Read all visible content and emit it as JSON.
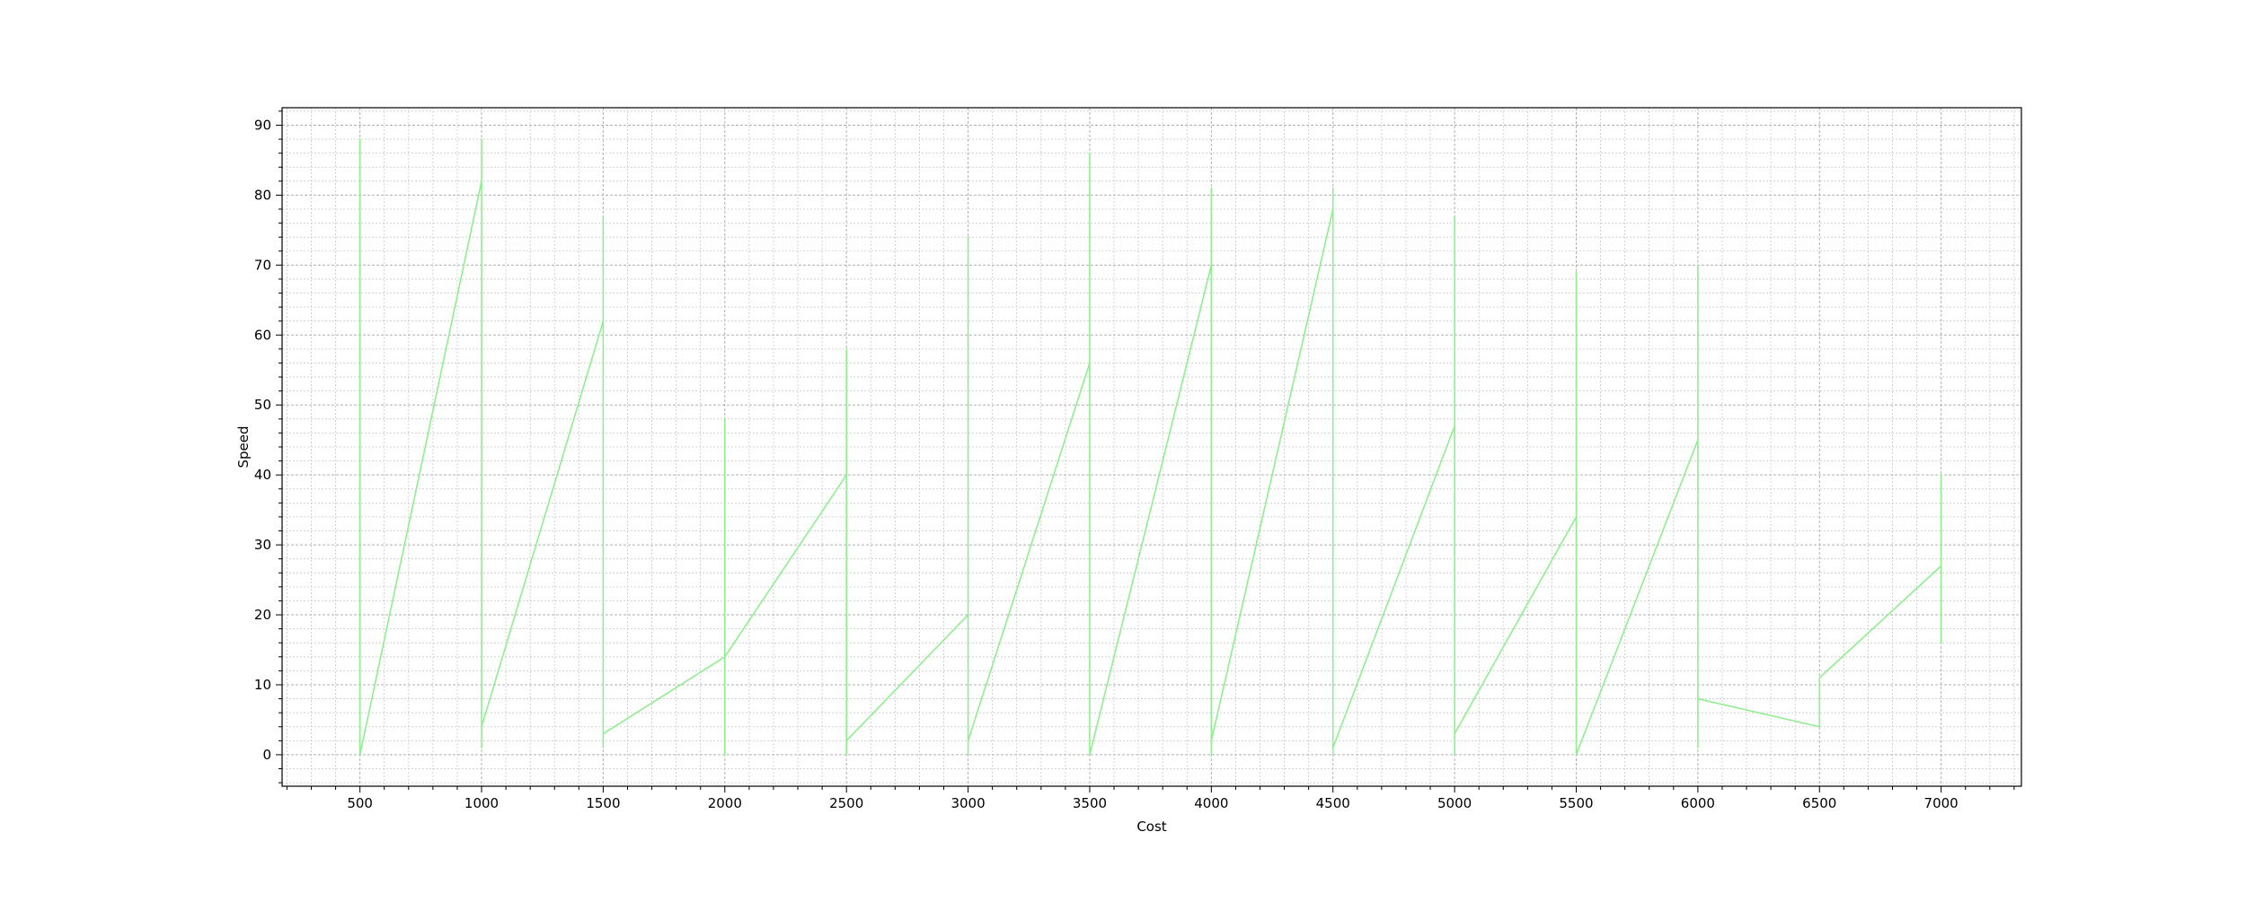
{
  "chart_data": {
    "type": "line",
    "xlabel": "Cost",
    "ylabel": "Speed",
    "xlim": [
      180,
      7330
    ],
    "ylim": [
      -4.5,
      92.5
    ],
    "x_ticks": [
      500,
      1000,
      1500,
      2000,
      2500,
      3000,
      3500,
      4000,
      4500,
      5000,
      5500,
      6000,
      6500,
      7000
    ],
    "y_ticks": [
      0,
      10,
      20,
      30,
      40,
      50,
      60,
      70,
      80,
      90
    ],
    "x_minor_step": 100,
    "y_minor_step": 2,
    "grid": true,
    "line_color": "#90ee90",
    "series": [
      {
        "x": [
          500,
          500,
          500,
          500,
          1000,
          1000,
          1000,
          1000,
          1500,
          1500,
          1500,
          1500,
          2000,
          2000,
          2000,
          2000,
          2500,
          2500,
          2500,
          2500,
          3000,
          3000,
          3000,
          3000,
          3500,
          3500,
          3500,
          3500,
          4000,
          4000,
          4000,
          4000,
          4500,
          4500,
          4500,
          4500,
          5000,
          5000,
          5000,
          5000,
          5500,
          5500,
          5500,
          5500,
          6000,
          6000,
          6000,
          6000,
          6500,
          6500,
          6500,
          6500,
          7000,
          7000,
          7000,
          7000
        ],
        "y": [
          88,
          0,
          88,
          0,
          82,
          88,
          1,
          4,
          62,
          77,
          1,
          3,
          14,
          48,
          0,
          14,
          40,
          58,
          0,
          2,
          20,
          74,
          0,
          2,
          56,
          86,
          0,
          0,
          70,
          81,
          0,
          2,
          78,
          81,
          0,
          1,
          47,
          77,
          0,
          3,
          34,
          69,
          0,
          0,
          45,
          70,
          1,
          8,
          4,
          4,
          4,
          11,
          27,
          40,
          16,
          27
        ]
      }
    ]
  }
}
